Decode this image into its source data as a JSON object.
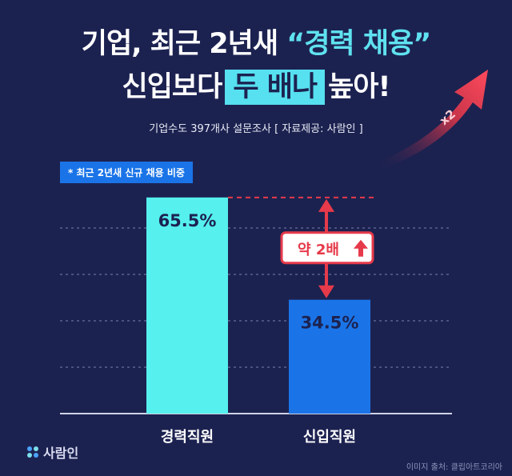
{
  "headline": {
    "line1_prefix": "기업, 최근 2년새 ",
    "line1_quote": "“경력 채용”",
    "line2_prefix": "신입보다",
    "line2_highlight": "두 배나",
    "line2_suffix": "높아!"
  },
  "subtitle": "기업수도 397개사 설문조사 [ 자료제공: 사람인 ]",
  "note": "* 최근 2년새 신규 채용 비중",
  "arrow_label": "x2",
  "compare_label": "약 2배",
  "logo_text": "사람인",
  "credit": "이미지 출처: 클립아트코리아",
  "colors": {
    "background": "#1c2250",
    "career_bar": "#56f0ee",
    "newcomer_bar": "#1a74e8",
    "accent_red": "#e63a4a",
    "highlight": "#56e0f0"
  },
  "chart_data": {
    "type": "bar",
    "categories": [
      "경력직원",
      "신입직원"
    ],
    "values": [
      65.5,
      34.5
    ],
    "value_labels": [
      "65.5%",
      "34.5%"
    ],
    "ylim": [
      0,
      80
    ],
    "grid": true,
    "title": "",
    "xlabel": "",
    "ylabel": ""
  }
}
